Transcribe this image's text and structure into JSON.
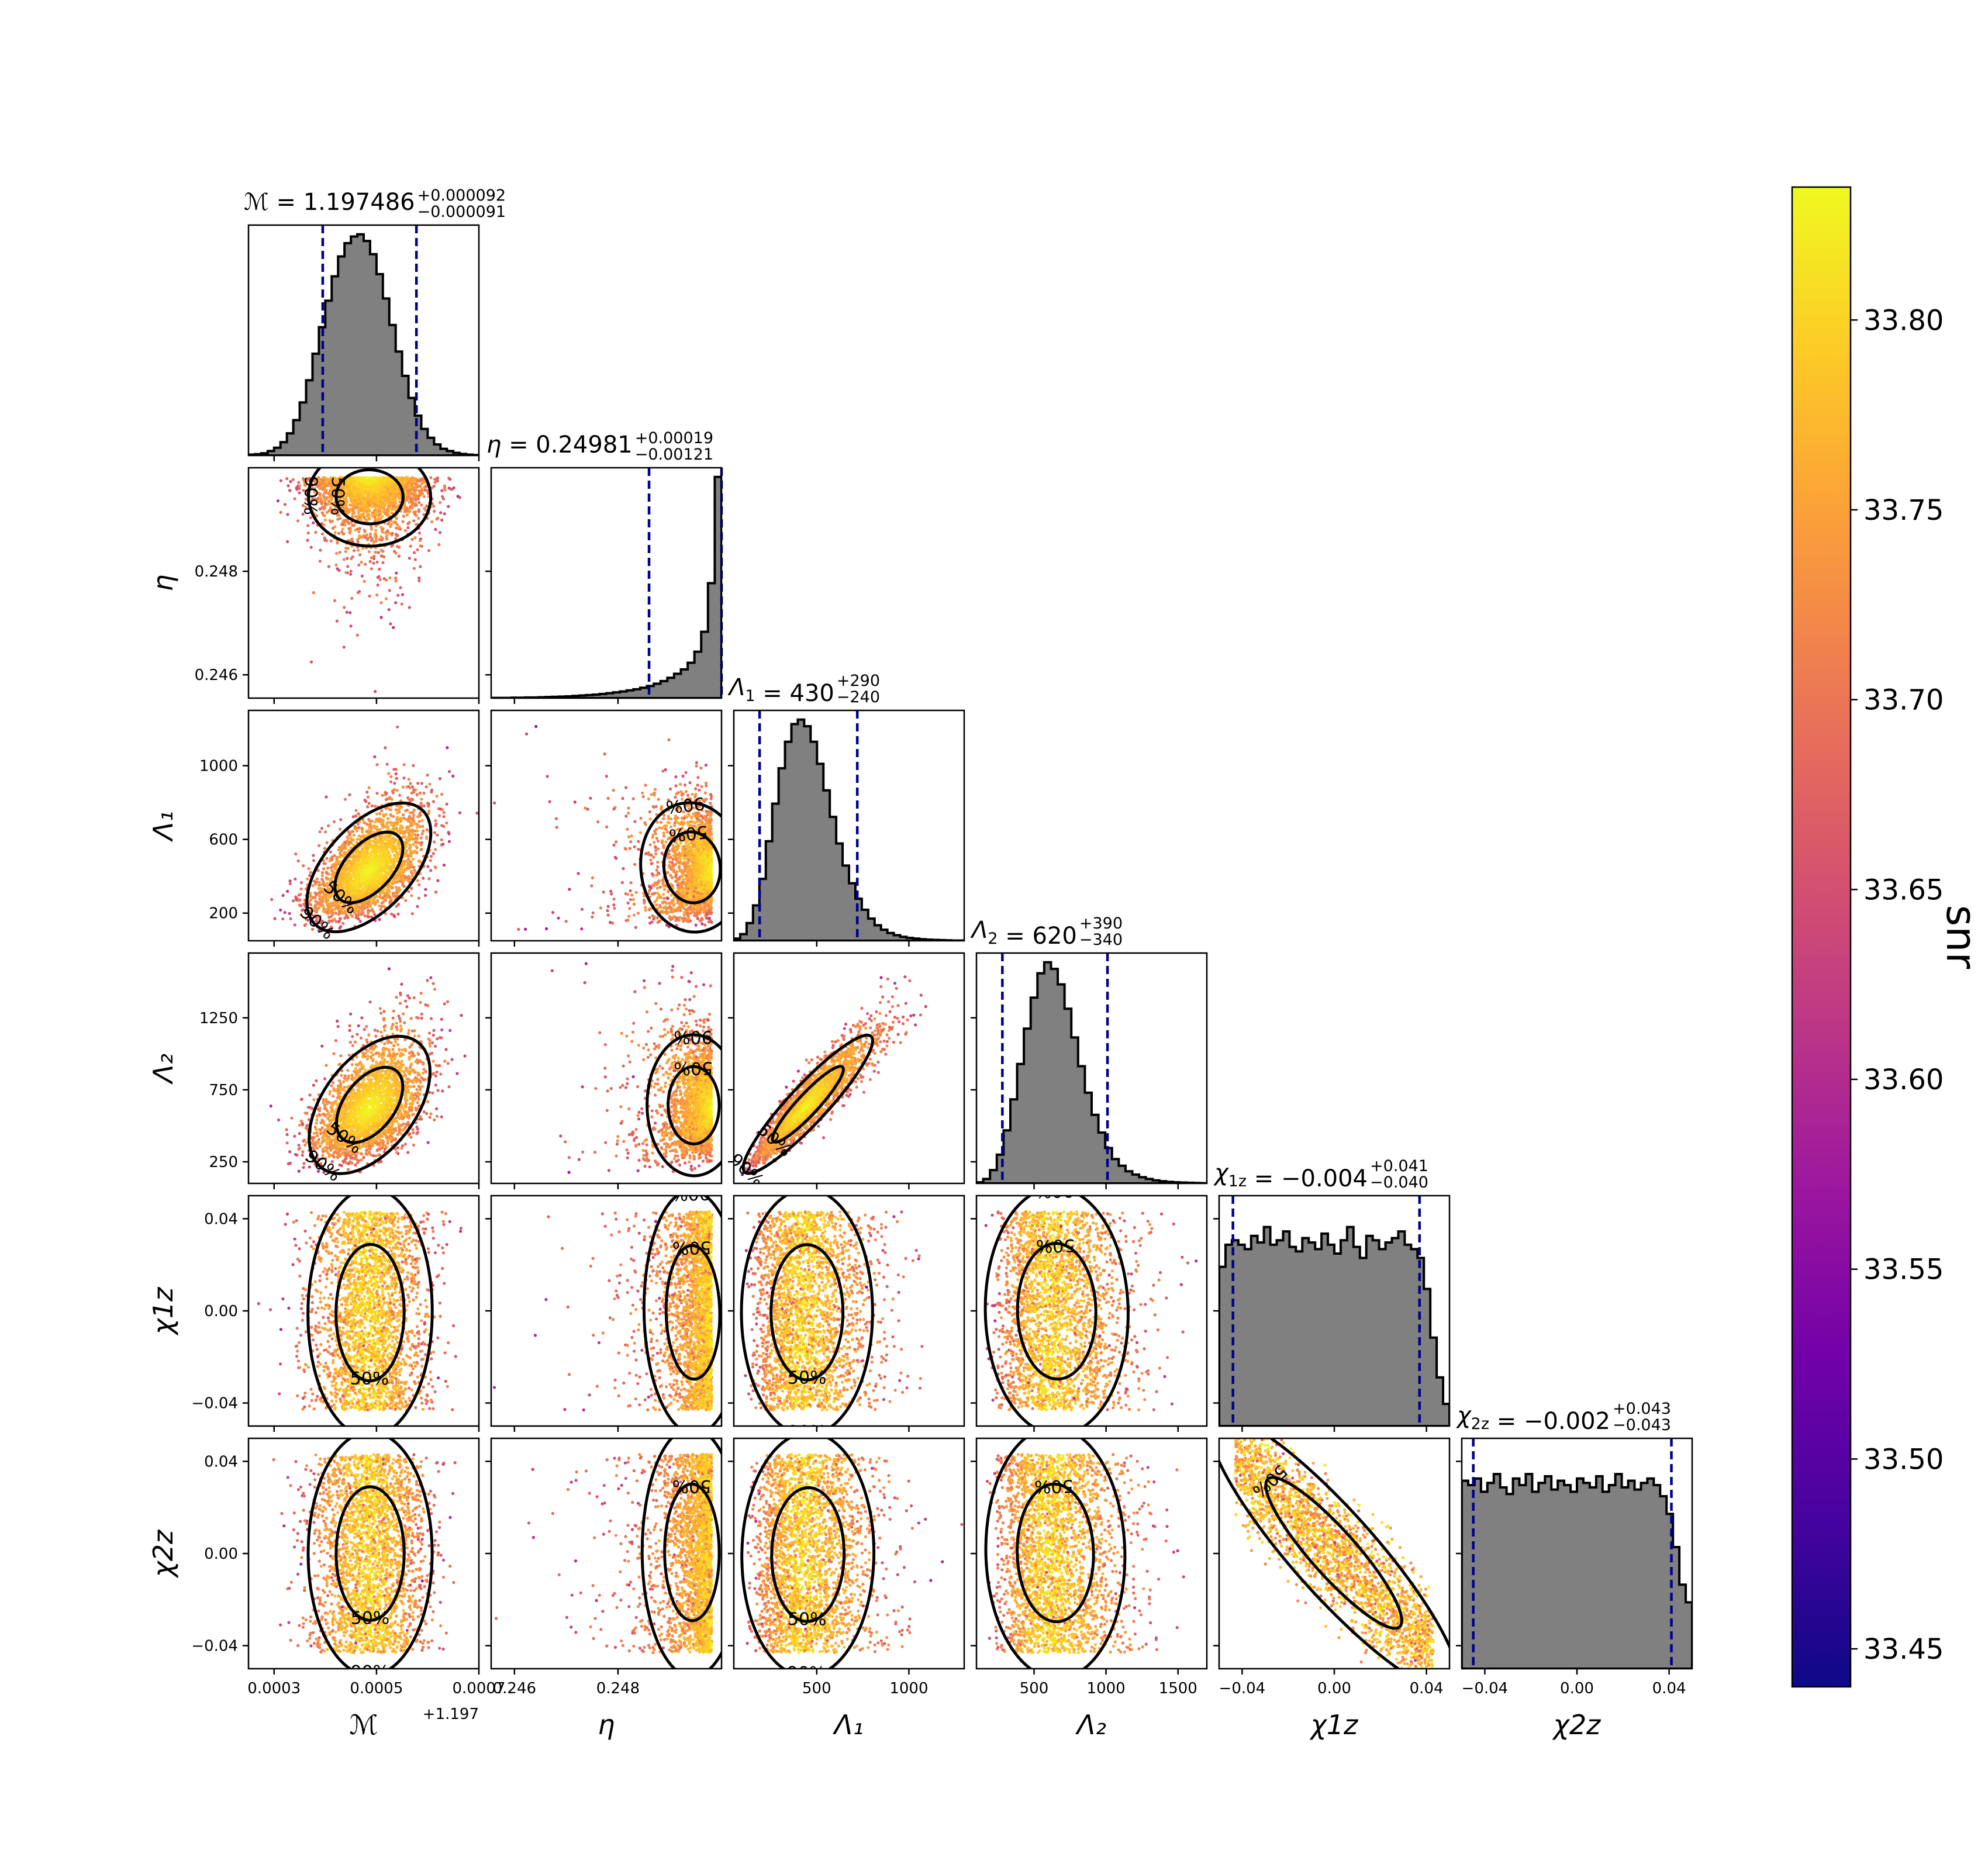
{
  "chart_data": {
    "type": "scatter",
    "subtype": "corner-plot",
    "parameters": [
      {
        "key": "mc",
        "label": "ℳ",
        "title_name": "ℳ",
        "value": "1.197486",
        "plus": "+0.000092",
        "minus": "−0.000091",
        "range": [
          0.00025,
          0.0007
        ],
        "ticks": [
          0.0003,
          0.0005,
          0.0007
        ],
        "tick_labels": [
          "0.0003",
          "0.0005",
          "0.0007"
        ],
        "offset_label": "+1.197",
        "central": 0.000486,
        "lo": 0.000395,
        "hi": 0.000578,
        "spread": 5e-05
      },
      {
        "key": "eta",
        "label": "η",
        "title_name": "η",
        "value": "0.24981",
        "plus": "+0.00019",
        "minus": "−0.00121",
        "range": [
          0.24555,
          0.25
        ],
        "ticks": [
          0.246,
          0.248
        ],
        "tick_labels": [
          "0.246",
          "0.248"
        ],
        "tick_labels_x": [
          "0.246",
          "0.248"
        ],
        "central": 0.24981,
        "lo": 0.2486,
        "hi": 0.25
      },
      {
        "key": "lam1",
        "label": "Λ₁",
        "title_name": "Λ",
        "title_sub": "1",
        "value": "430",
        "plus": "+290",
        "minus": "−240",
        "range": [
          50,
          1300
        ],
        "ticks": [
          200,
          600,
          1000
        ],
        "ticks_x": [
          500,
          1000
        ],
        "tick_labels": [
          "200",
          "600",
          "1000"
        ],
        "tick_labels_x": [
          "500",
          "1000"
        ],
        "central": 430,
        "lo": 190,
        "hi": 720
      },
      {
        "key": "lam2",
        "label": "Λ₂",
        "title_name": "Λ",
        "title_sub": "2",
        "value": "620",
        "plus": "+390",
        "minus": "−340",
        "range": [
          100,
          1700
        ],
        "ticks": [
          250,
          750,
          1250
        ],
        "ticks_x": [
          500,
          1000,
          1500
        ],
        "tick_labels": [
          "250",
          "750",
          "1250"
        ],
        "tick_labels_x": [
          "500",
          "1000",
          "1500"
        ],
        "central": 620,
        "lo": 280,
        "hi": 1010
      },
      {
        "key": "chi1",
        "label": "χ1z",
        "title_name": "χ",
        "title_sub": "1z",
        "value": "−0.004",
        "plus": "+0.041",
        "minus": "−0.040",
        "range": [
          -0.05,
          0.05
        ],
        "ticks": [
          -0.04,
          0.0,
          0.04
        ],
        "tick_labels": [
          "−0.04",
          "0.00",
          "0.04"
        ],
        "central": -0.004,
        "lo": -0.044,
        "hi": 0.037
      },
      {
        "key": "chi2",
        "label": "χ2z",
        "title_name": "χ",
        "title_sub": "2z",
        "value": "−0.002",
        "plus": "+0.043",
        "minus": "−0.043",
        "range": [
          -0.05,
          0.05
        ],
        "ticks": [
          -0.04,
          0.0,
          0.04
        ],
        "tick_labels": [
          "−0.04",
          "0.00",
          "0.04"
        ],
        "central": -0.002,
        "lo": -0.045,
        "hi": 0.041
      }
    ],
    "histograms": {
      "mc": [
        0.004,
        0.006,
        0.01,
        0.02,
        0.035,
        0.06,
        0.1,
        0.16,
        0.24,
        0.34,
        0.46,
        0.58,
        0.7,
        0.81,
        0.9,
        0.96,
        0.99,
        1.0,
        0.97,
        0.91,
        0.82,
        0.71,
        0.59,
        0.47,
        0.36,
        0.26,
        0.18,
        0.12,
        0.08,
        0.05,
        0.03,
        0.02,
        0.012,
        0.007,
        0.004,
        0.002
      ],
      "eta": [
        0.001,
        0.001,
        0.001,
        0.002,
        0.002,
        0.003,
        0.003,
        0.004,
        0.005,
        0.006,
        0.007,
        0.008,
        0.01,
        0.012,
        0.014,
        0.016,
        0.019,
        0.022,
        0.026,
        0.03,
        0.035,
        0.04,
        0.047,
        0.055,
        0.065,
        0.077,
        0.092,
        0.11,
        0.13,
        0.16,
        0.21,
        0.3,
        0.52,
        1.0
      ],
      "lam1": [
        0.01,
        0.03,
        0.08,
        0.16,
        0.28,
        0.45,
        0.62,
        0.78,
        0.9,
        0.98,
        1.0,
        0.97,
        0.9,
        0.8,
        0.68,
        0.56,
        0.44,
        0.34,
        0.26,
        0.19,
        0.14,
        0.1,
        0.07,
        0.05,
        0.035,
        0.025,
        0.018,
        0.013,
        0.01,
        0.007,
        0.005,
        0.004,
        0.003,
        0.002,
        0.001,
        0.001
      ],
      "lam2": [
        0.005,
        0.02,
        0.06,
        0.13,
        0.24,
        0.38,
        0.54,
        0.7,
        0.84,
        0.95,
        1.0,
        0.97,
        0.9,
        0.79,
        0.66,
        0.53,
        0.41,
        0.31,
        0.23,
        0.16,
        0.11,
        0.08,
        0.055,
        0.04,
        0.028,
        0.02,
        0.014,
        0.01,
        0.007,
        0.005,
        0.004,
        0.003,
        0.002,
        0.001
      ],
      "chi1": [
        0.72,
        0.82,
        0.84,
        0.82,
        0.8,
        0.86,
        0.83,
        0.9,
        0.82,
        0.84,
        0.88,
        0.81,
        0.79,
        0.85,
        0.83,
        0.8,
        0.87,
        0.82,
        0.78,
        0.84,
        0.9,
        0.81,
        0.76,
        0.86,
        0.84,
        0.8,
        0.83,
        0.85,
        0.88,
        0.82,
        0.8,
        0.76,
        0.62,
        0.4,
        0.22,
        0.1
      ],
      "chi2": [
        0.85,
        0.83,
        0.86,
        0.8,
        0.84,
        0.88,
        0.82,
        0.79,
        0.86,
        0.83,
        0.88,
        0.8,
        0.84,
        0.87,
        0.81,
        0.85,
        0.83,
        0.8,
        0.86,
        0.84,
        0.82,
        0.87,
        0.8,
        0.83,
        0.88,
        0.82,
        0.85,
        0.81,
        0.84,
        0.86,
        0.83,
        0.78,
        0.7,
        0.55,
        0.38,
        0.3
      ]
    },
    "correlations": {
      "eta|mc": -0.2,
      "lam1|mc": 0.55,
      "lam1|eta": 0.6,
      "lam2|mc": 0.5,
      "lam2|eta": 0.55,
      "lam2|lam1": 0.92,
      "chi1|mc": 0.05,
      "chi1|eta": 0.0,
      "chi1|lam1": 0.0,
      "chi1|lam2": 0.0,
      "chi2|mc": 0.05,
      "chi2|eta": 0.0,
      "chi2|lam1": 0.0,
      "chi2|lam2": 0.0,
      "chi2|chi1": -0.97
    },
    "contour_labels": [
      "50%",
      "90%"
    ],
    "colorbar": {
      "label": "snr",
      "range": [
        33.44,
        33.835
      ],
      "ticks": [
        "33.45",
        "33.50",
        "33.55",
        "33.60",
        "33.65",
        "33.70",
        "33.75",
        "33.80"
      ],
      "tick_values": [
        33.45,
        33.5,
        33.55,
        33.6,
        33.65,
        33.7,
        33.75,
        33.8
      ],
      "colormap": "plasma"
    },
    "colors": {
      "hist_fill": "#808080",
      "hist_line": "#000000",
      "quantile_line": "#00008b",
      "plasma": [
        "#0d0887",
        "#46039f",
        "#7201a8",
        "#9c179e",
        "#bd3786",
        "#d8576b",
        "#ed7953",
        "#fb9f3a",
        "#fdca26",
        "#f0f921"
      ]
    }
  }
}
